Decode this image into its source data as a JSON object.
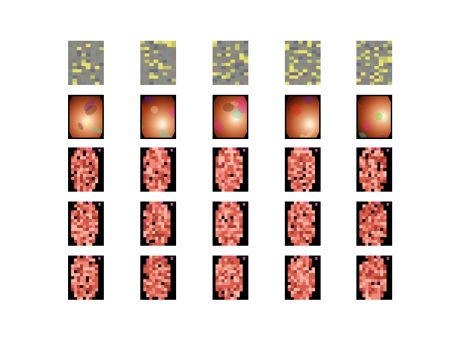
{
  "figure": {
    "background": "#ffffff",
    "rows": [
      {
        "kind": "noise",
        "description_colors": [
          "#8a8a82",
          "#e8e070",
          "#6e6e7a"
        ],
        "count": 5
      },
      {
        "kind": "endoscopy-photo",
        "palette": [
          "#5a1a0c",
          "#a24a26",
          "#d88a5a",
          "#f4c8a0",
          "#2a0a04"
        ],
        "count": 5
      },
      {
        "kind": "reconstruction",
        "palette": [
          "#f08a78",
          "#d85a4a",
          "#a83a30",
          "#ffb0a0",
          "#000000",
          "#e060c0"
        ],
        "count": 5
      },
      {
        "kind": "reconstruction",
        "palette": [
          "#f08a78",
          "#d85a4a",
          "#a83a30",
          "#ffb0a0",
          "#000000",
          "#e060c0"
        ],
        "count": 5
      },
      {
        "kind": "reconstruction",
        "palette": [
          "#f08a78",
          "#d85a4a",
          "#a83a30",
          "#ffb0a0",
          "#000000",
          "#e060c0"
        ],
        "count": 5
      }
    ]
  }
}
